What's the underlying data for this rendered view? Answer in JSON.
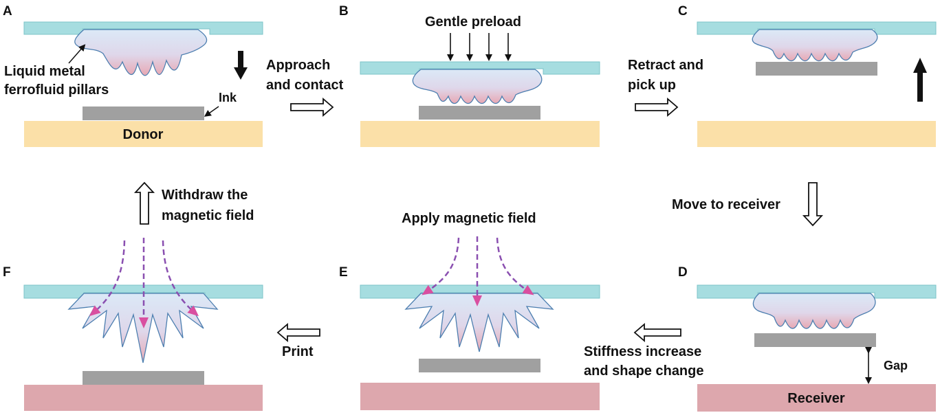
{
  "panels": {
    "A": "A",
    "B": "B",
    "C": "C",
    "D": "D",
    "E": "E",
    "F": "F"
  },
  "labels": {
    "liquid_metal_1": "Liquid metal",
    "liquid_metal_2": "ferrofluid pillars",
    "ink": "Ink",
    "donor": "Donor",
    "receiver": "Receiver",
    "gentle_preload": "Gentle preload",
    "approach_1": "Approach",
    "approach_2": "and contact",
    "retract_1": "Retract and",
    "retract_2": "pick up",
    "move_to_receiver": "Move to receiver",
    "gap": "Gap",
    "stiffness_1": "Stiffness increase",
    "stiffness_2": "and shape change",
    "apply_field": "Apply  magnetic field",
    "print": "Print",
    "withdraw_1": "Withdraw the",
    "withdraw_2": "magnetic field"
  },
  "colors": {
    "top_plate": "#a6dde0",
    "top_plate_edge": "#7cc4c9",
    "donor": "#fbe0a8",
    "receiver": "#dda7ad",
    "ink": "#a0a0a0",
    "field_line": "#8a4fb0",
    "field_arrow": "#d94fa0",
    "pillar_top": "#dbe9f7",
    "pillar_bottom": "#e8a8b3",
    "pillar_edge": "#4d7fb0"
  }
}
